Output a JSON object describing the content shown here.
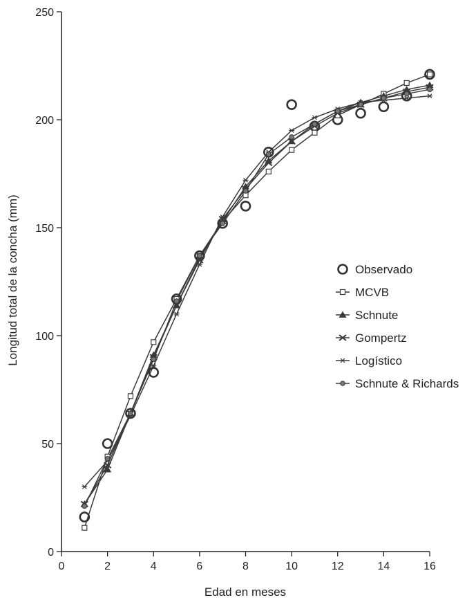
{
  "chart_data": {
    "type": "line",
    "xlabel": "Edad en meses",
    "ylabel": "Longitud total de la concha (mm)",
    "xlim": [
      0,
      16
    ],
    "ylim": [
      0,
      250
    ],
    "xticks": [
      0,
      2,
      4,
      6,
      8,
      10,
      12,
      14,
      16
    ],
    "yticks": [
      0,
      50,
      100,
      150,
      200,
      250
    ],
    "grid": false,
    "legend_position": "right",
    "colors": {
      "line": "#3a3a3a",
      "marker": "#3a3a3a",
      "observed": "#333333"
    },
    "series": [
      {
        "name": "Observado",
        "marker": "circle-open-large",
        "line": false,
        "x": [
          1,
          2,
          3,
          4,
          5,
          6,
          7,
          8,
          9,
          10,
          11,
          12,
          13,
          14,
          15,
          16
        ],
        "values": [
          16,
          50,
          64,
          83,
          117,
          137,
          152,
          160,
          185,
          207,
          197,
          200,
          203,
          206,
          211,
          221
        ]
      },
      {
        "name": "MCVB",
        "marker": "square-open",
        "line": true,
        "x": [
          1,
          2,
          3,
          4,
          5,
          6,
          7,
          8,
          9,
          10,
          11,
          12,
          13,
          14,
          15,
          16
        ],
        "values": [
          11,
          44,
          72,
          97,
          117,
          137,
          153,
          165,
          176,
          186,
          194,
          202,
          207,
          212,
          217,
          221
        ]
      },
      {
        "name": "Schnute",
        "marker": "triangle-filled",
        "line": true,
        "x": [
          1,
          2,
          3,
          4,
          5,
          6,
          7,
          8,
          9,
          10,
          11,
          12,
          13,
          14,
          15,
          16
        ],
        "values": [
          22,
          38,
          64,
          91,
          114,
          136,
          153,
          169,
          181,
          190,
          198,
          204,
          208,
          211,
          214,
          216
        ]
      },
      {
        "name": "Gompertz",
        "marker": "x",
        "line": true,
        "x": [
          1,
          2,
          3,
          4,
          5,
          6,
          7,
          8,
          9,
          10,
          11,
          12,
          13,
          14,
          15,
          16
        ],
        "values": [
          22,
          40,
          64,
          90,
          114,
          135,
          154,
          168,
          180,
          190,
          197,
          203,
          207,
          210,
          213,
          215
        ]
      },
      {
        "name": "Logístico",
        "marker": "asterisk",
        "line": true,
        "x": [
          1,
          2,
          3,
          4,
          5,
          6,
          7,
          8,
          9,
          10,
          11,
          12,
          13,
          14,
          15,
          16
        ],
        "values": [
          30,
          42,
          63,
          86,
          110,
          133,
          155,
          172,
          185,
          195,
          201,
          205,
          208,
          209,
          210,
          211
        ]
      },
      {
        "name": "Schnute & Richards",
        "marker": "circle-filled-small",
        "line": true,
        "x": [
          1,
          2,
          3,
          4,
          5,
          6,
          7,
          8,
          9,
          10,
          11,
          12,
          13,
          14,
          15,
          16
        ],
        "values": [
          21,
          43,
          64,
          89,
          116,
          137,
          152,
          167,
          184,
          192,
          198,
          204,
          207,
          210,
          212,
          214
        ]
      }
    ]
  }
}
